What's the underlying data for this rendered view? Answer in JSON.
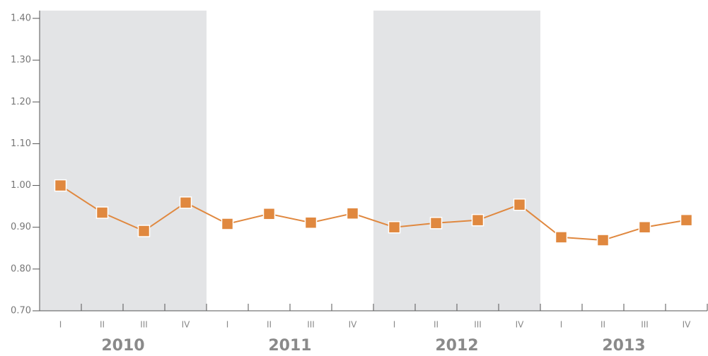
{
  "chart_data": {
    "type": "line",
    "categories": [
      "I",
      "II",
      "III",
      "IV",
      "I",
      "II",
      "III",
      "IV",
      "I",
      "II",
      "III",
      "IV",
      "I",
      "II",
      "III",
      "IV"
    ],
    "groups": [
      {
        "label": "2010",
        "shaded": true
      },
      {
        "label": "2011",
        "shaded": false
      },
      {
        "label": "2012",
        "shaded": true
      },
      {
        "label": "2013",
        "shaded": false
      }
    ],
    "series": [
      {
        "color": "#e0883f",
        "values": [
          1.0,
          0.935,
          0.891,
          0.959,
          0.908,
          0.932,
          0.911,
          0.933,
          0.9,
          0.91,
          0.917,
          0.954,
          0.876,
          0.869,
          0.9,
          0.917
        ]
      }
    ],
    "ylim": [
      0.7,
      1.4
    ],
    "yticks": [
      {
        "value": 0.7,
        "label": "0.70"
      },
      {
        "value": 0.8,
        "label": "0.80"
      },
      {
        "value": 0.9,
        "label": "0.90"
      },
      {
        "value": 1.0,
        "label": "1.00"
      },
      {
        "value": 1.1,
        "label": "1.10"
      },
      {
        "value": 1.2,
        "label": "1.20"
      },
      {
        "value": 1.3,
        "label": "1.30"
      },
      {
        "value": 1.4,
        "label": "1.40"
      }
    ],
    "shade_color": "#e3e4e6"
  }
}
